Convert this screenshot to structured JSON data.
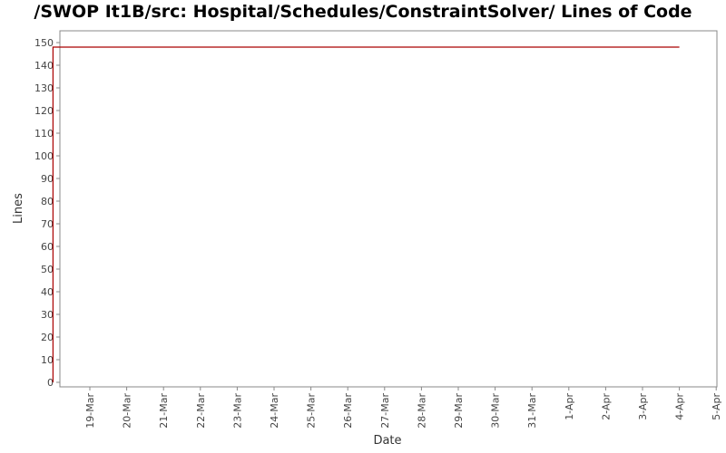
{
  "chart_data": {
    "type": "line",
    "title": "/SWOP It1B/src: Hospital/Schedules/ConstraintSolver/ Lines of Code",
    "xlabel": "Date",
    "ylabel": "Lines",
    "y_ticks": [
      "0",
      "10",
      "20",
      "30",
      "40",
      "50",
      "60",
      "70",
      "80",
      "90",
      "100",
      "110",
      "120",
      "130",
      "140",
      "150"
    ],
    "x_ticks": [
      "19-Mar",
      "20-Mar",
      "21-Mar",
      "22-Mar",
      "23-Mar",
      "24-Mar",
      "25-Mar",
      "26-Mar",
      "27-Mar",
      "28-Mar",
      "29-Mar",
      "30-Mar",
      "31-Mar",
      "1-Apr",
      "2-Apr",
      "3-Apr",
      "4-Apr",
      "5-Apr"
    ],
    "ylim": [
      0,
      154
    ],
    "xlim": [
      "18-Mar",
      "5-Apr"
    ],
    "grid": false,
    "series": [
      {
        "color": "#aa0000",
        "points": [
          {
            "x": "18-Mar",
            "y": 0
          },
          {
            "x": "18-Mar",
            "y": 148
          },
          {
            "x": "4-Apr",
            "y": 148
          }
        ]
      }
    ]
  }
}
